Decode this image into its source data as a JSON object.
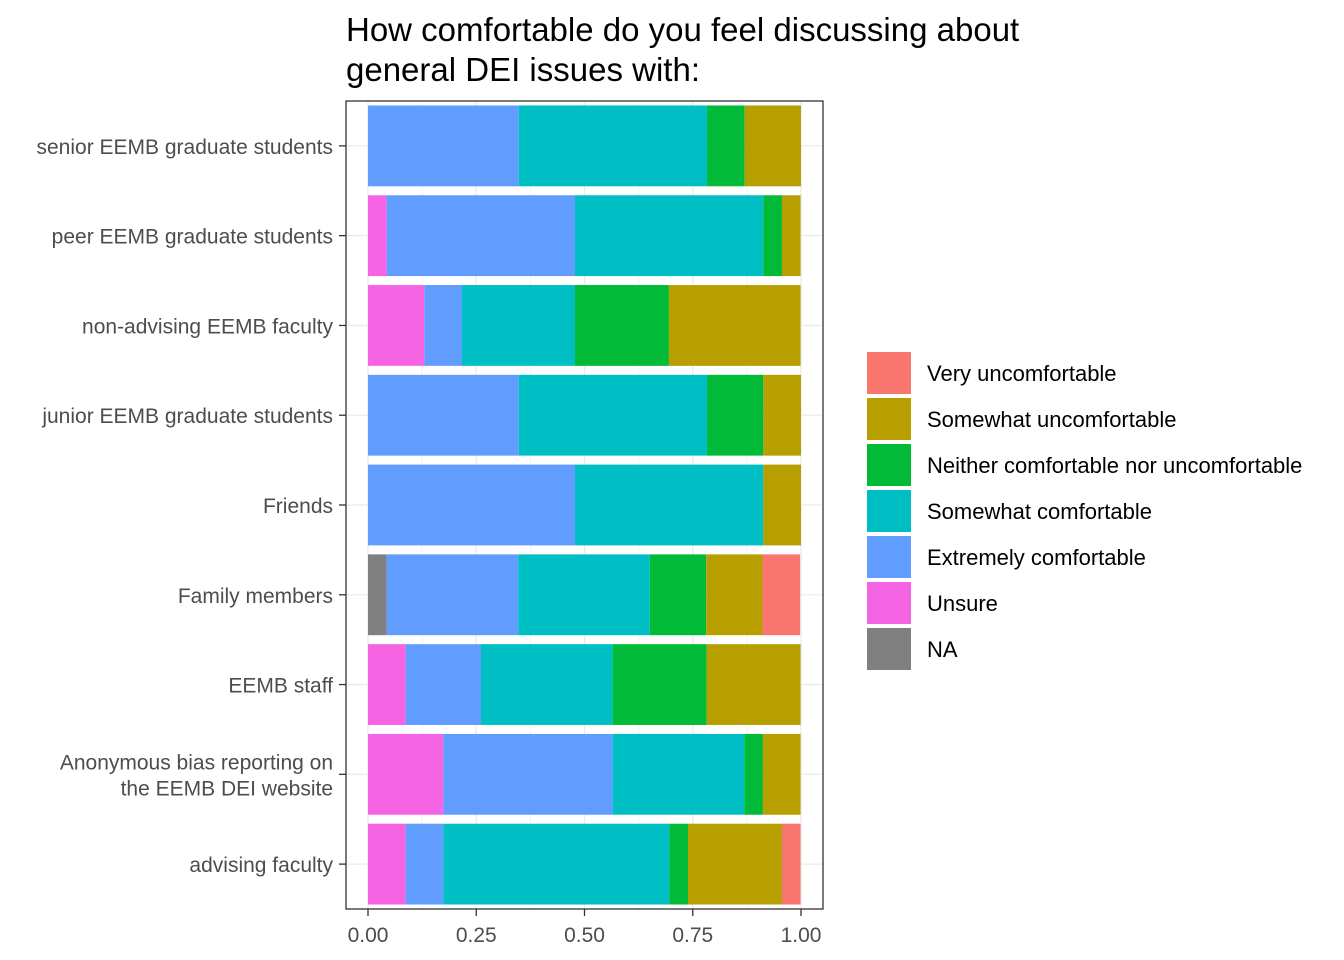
{
  "chart_data": {
    "type": "bar",
    "orientation": "horizontal",
    "stacked": true,
    "title": "How comfortable do you feel discussing about general DEI issues with:",
    "title_lines": [
      "How comfortable do you feel discussing about",
      "general DEI issues with:"
    ],
    "xlabel": "",
    "ylabel": "",
    "xlim": [
      0,
      1
    ],
    "xticks": [
      0,
      0.25,
      0.5,
      0.75,
      1.0
    ],
    "xtick_labels": [
      "0.00",
      "0.25",
      "0.50",
      "0.75",
      "1.00"
    ],
    "grid": true,
    "legend_position": "right",
    "categories": [
      {
        "label": [
          "senior EEMB graduate students"
        ]
      },
      {
        "label": [
          "peer EEMB graduate students"
        ]
      },
      {
        "label": [
          "non-advising EEMB faculty"
        ]
      },
      {
        "label": [
          "junior EEMB graduate students"
        ]
      },
      {
        "label": [
          "Friends"
        ]
      },
      {
        "label": [
          "Family members"
        ]
      },
      {
        "label": [
          "EEMB staff"
        ]
      },
      {
        "label": [
          "Anonymous bias reporting on",
          "the EEMB DEI website"
        ]
      },
      {
        "label": [
          "advising faculty"
        ]
      }
    ],
    "series": [
      {
        "name": "Very uncomfortable",
        "color": "#F8766D",
        "values": [
          0,
          0,
          0,
          0,
          0,
          0.087,
          0,
          0,
          0.043
        ]
      },
      {
        "name": "Somewhat uncomfortable",
        "color": "#B79F00",
        "values": [
          0.13,
          0.043,
          0.304,
          0.087,
          0.087,
          0.13,
          0.217,
          0.087,
          0.217
        ]
      },
      {
        "name": "Neither comfortable nor uncomfortable",
        "color": "#00BA38",
        "values": [
          0.087,
          0.043,
          0.217,
          0.13,
          0,
          0.13,
          0.217,
          0.043,
          0.043
        ]
      },
      {
        "name": "Somewhat comfortable",
        "color": "#00BFC4",
        "values": [
          0.435,
          0.435,
          0.261,
          0.435,
          0.435,
          0.304,
          0.304,
          0.304,
          0.522
        ]
      },
      {
        "name": "Extremely comfortable",
        "color": "#619CFF",
        "values": [
          0.348,
          0.435,
          0.087,
          0.348,
          0.478,
          0.304,
          0.174,
          0.391,
          0.087
        ]
      },
      {
        "name": "Unsure",
        "color": "#F564E3",
        "values": [
          0,
          0.043,
          0.13,
          0,
          0,
          0,
          0.087,
          0.174,
          0.087
        ]
      },
      {
        "name": "NA",
        "color": "#808080",
        "values": [
          0,
          0,
          0,
          0,
          0,
          0.043,
          0,
          0,
          0
        ]
      }
    ]
  }
}
